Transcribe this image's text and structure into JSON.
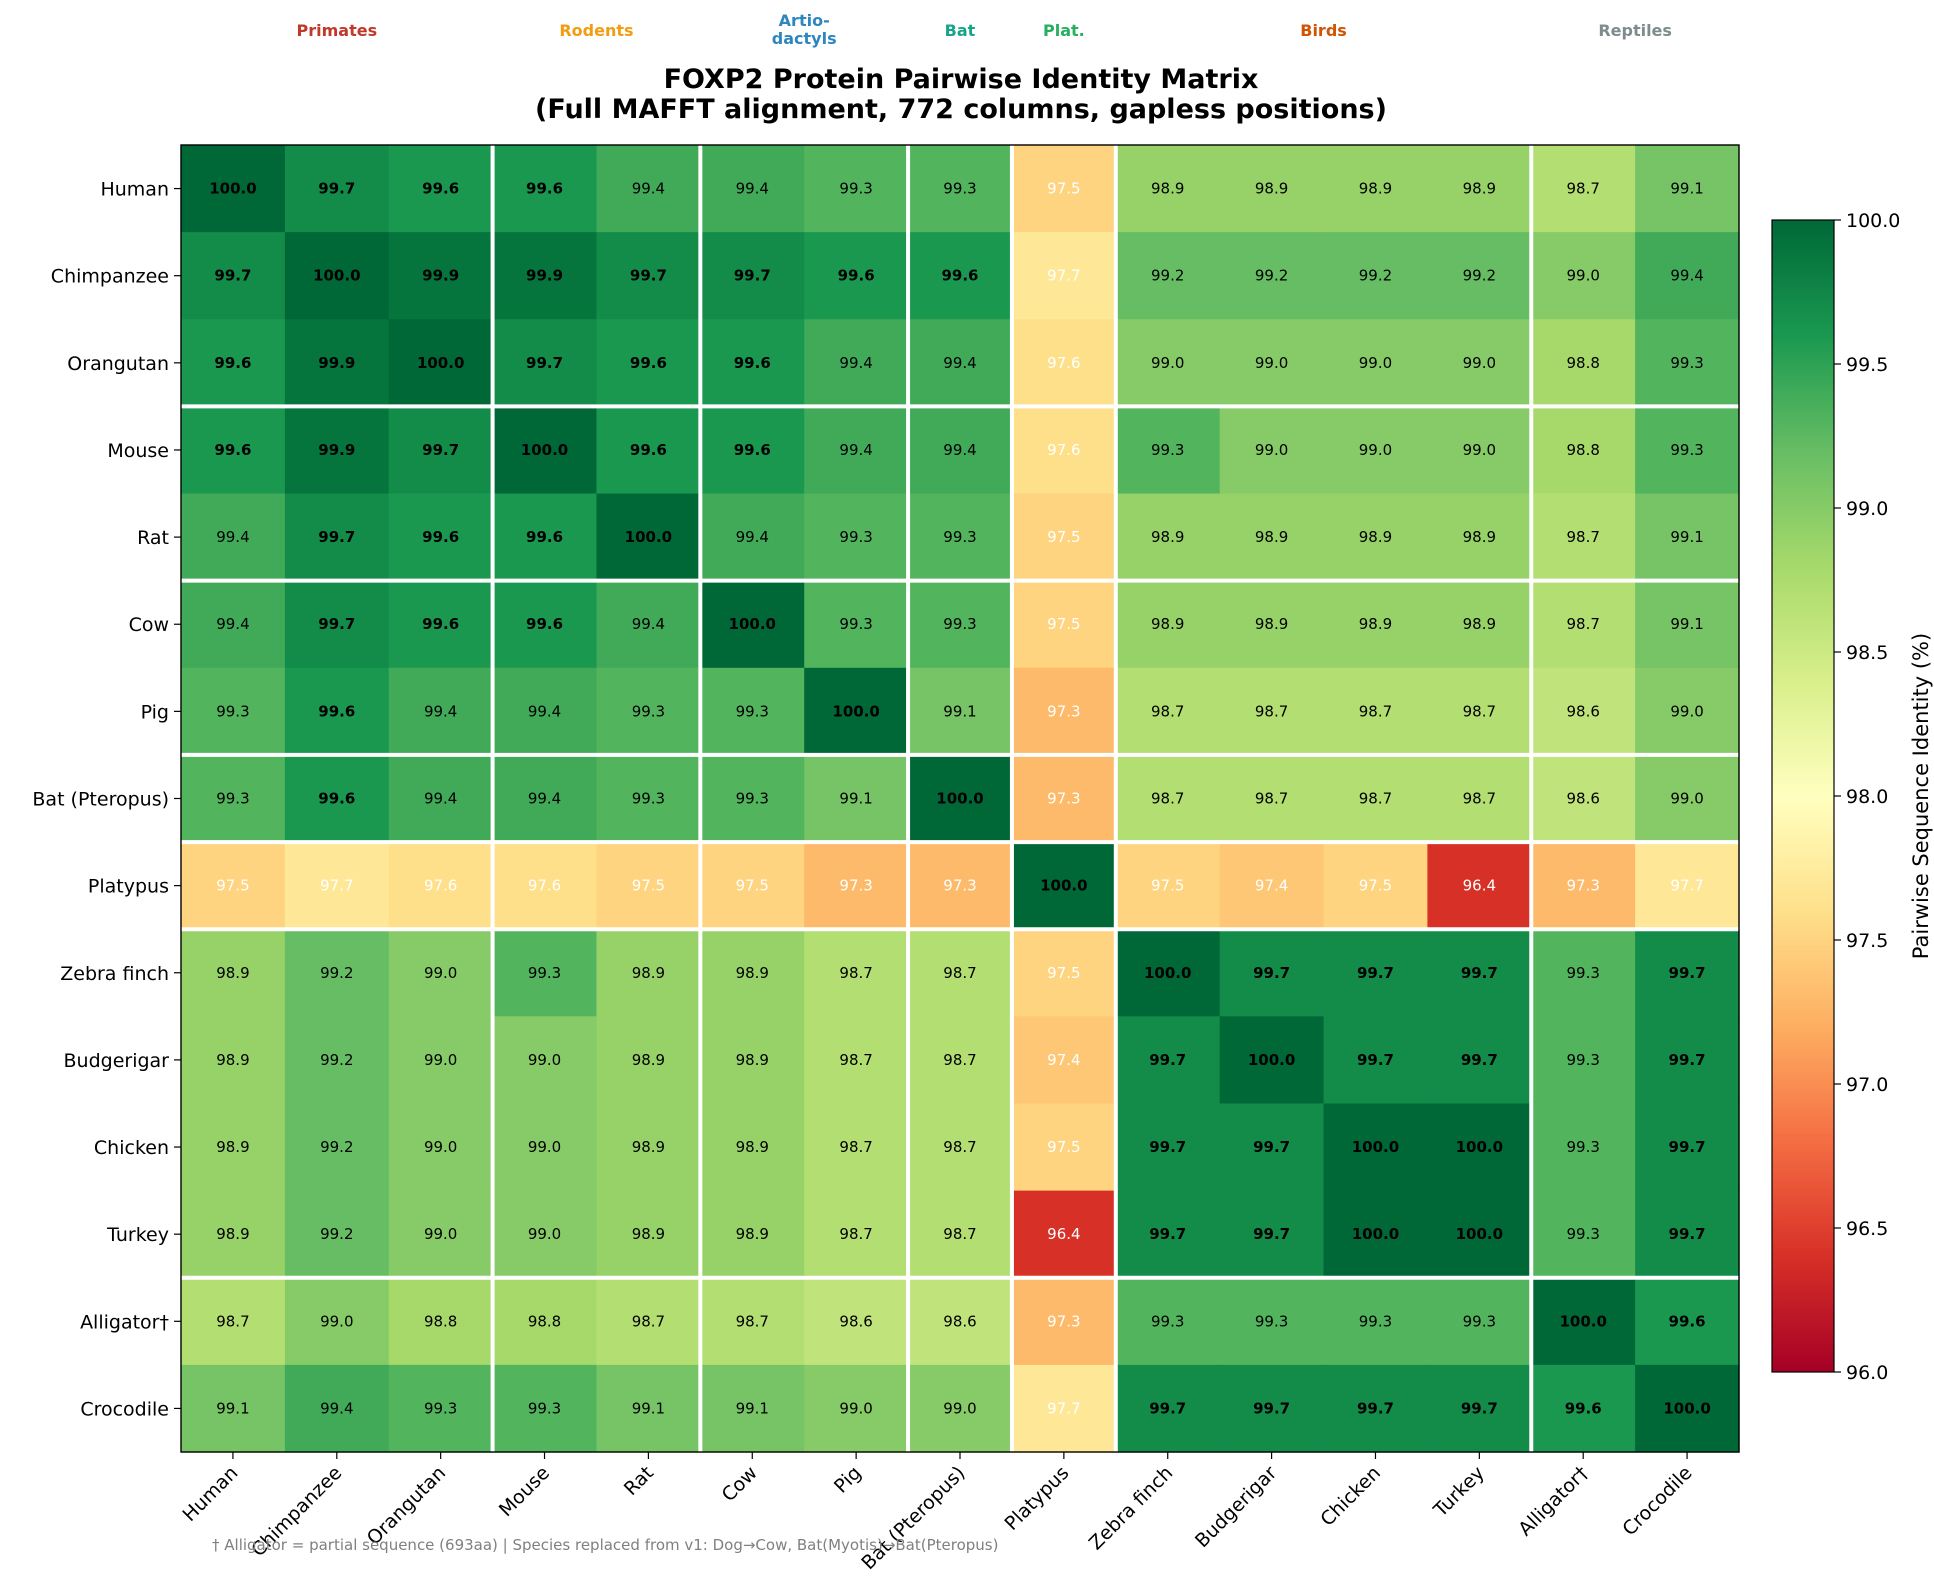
{
  "chart_data": {
    "type": "heatmap",
    "title": "FOXP2 Protein Pairwise Identity Matrix",
    "subtitle": "(Full MAFFT alignment, 772 columns, gapless positions)",
    "species": [
      "Human",
      "Chimpanzee",
      "Orangutan",
      "Mouse",
      "Rat",
      "Cow",
      "Pig",
      "Bat (Pteropus)",
      "Platypus",
      "Zebra finch",
      "Budgerigar",
      "Chicken",
      "Turkey",
      "Alligator†",
      "Crocodile"
    ],
    "values": [
      [
        100.0,
        99.7,
        99.6,
        99.6,
        99.4,
        99.4,
        99.3,
        99.3,
        97.5,
        98.9,
        98.9,
        98.9,
        98.9,
        98.7,
        99.1
      ],
      [
        99.7,
        100.0,
        99.9,
        99.9,
        99.7,
        99.7,
        99.6,
        99.6,
        97.7,
        99.2,
        99.2,
        99.2,
        99.2,
        99.0,
        99.4
      ],
      [
        99.6,
        99.9,
        100.0,
        99.7,
        99.6,
        99.6,
        99.4,
        99.4,
        97.6,
        99.0,
        99.0,
        99.0,
        99.0,
        98.8,
        99.3
      ],
      [
        99.6,
        99.9,
        99.7,
        100.0,
        99.6,
        99.6,
        99.4,
        99.4,
        97.6,
        99.3,
        99.0,
        99.0,
        99.0,
        98.8,
        99.3
      ],
      [
        99.4,
        99.7,
        99.6,
        99.6,
        100.0,
        99.4,
        99.3,
        99.3,
        97.5,
        98.9,
        98.9,
        98.9,
        98.9,
        98.7,
        99.1
      ],
      [
        99.4,
        99.7,
        99.6,
        99.6,
        99.4,
        100.0,
        99.3,
        99.3,
        97.5,
        98.9,
        98.9,
        98.9,
        98.9,
        98.7,
        99.1
      ],
      [
        99.3,
        99.6,
        99.4,
        99.4,
        99.3,
        99.3,
        100.0,
        99.1,
        97.3,
        98.7,
        98.7,
        98.7,
        98.7,
        98.6,
        99.0
      ],
      [
        99.3,
        99.6,
        99.4,
        99.4,
        99.3,
        99.3,
        99.1,
        100.0,
        97.3,
        98.7,
        98.7,
        98.7,
        98.7,
        98.6,
        99.0
      ],
      [
        97.5,
        97.7,
        97.6,
        97.6,
        97.5,
        97.5,
        97.3,
        97.3,
        100.0,
        97.5,
        97.4,
        97.5,
        96.4,
        97.3,
        97.7
      ],
      [
        98.9,
        99.2,
        99.0,
        99.3,
        98.9,
        98.9,
        98.7,
        98.7,
        97.5,
        100.0,
        99.7,
        99.7,
        99.7,
        99.3,
        99.7
      ],
      [
        98.9,
        99.2,
        99.0,
        99.0,
        98.9,
        98.9,
        98.7,
        98.7,
        97.4,
        99.7,
        100.0,
        99.7,
        99.7,
        99.3,
        99.7
      ],
      [
        98.9,
        99.2,
        99.0,
        99.0,
        98.9,
        98.9,
        98.7,
        98.7,
        97.5,
        99.7,
        99.7,
        100.0,
        100.0,
        99.3,
        99.7
      ],
      [
        98.9,
        99.2,
        99.0,
        99.0,
        98.9,
        98.9,
        98.7,
        98.7,
        96.4,
        99.7,
        99.7,
        100.0,
        100.0,
        99.3,
        99.7
      ],
      [
        98.7,
        99.0,
        98.8,
        98.8,
        98.7,
        98.7,
        98.6,
        98.6,
        97.3,
        99.3,
        99.3,
        99.3,
        99.3,
        100.0,
        99.6
      ],
      [
        99.1,
        99.4,
        99.3,
        99.3,
        99.1,
        99.1,
        99.0,
        99.0,
        97.7,
        99.7,
        99.7,
        99.7,
        99.7,
        99.6,
        100.0
      ]
    ],
    "groups": [
      {
        "label": "Primates",
        "start": 0,
        "end": 2,
        "color": "#c0392b"
      },
      {
        "label": "Rodents",
        "start": 3,
        "end": 4,
        "color": "#f39c12"
      },
      {
        "label": "Artio-\ndactyls",
        "start": 5,
        "end": 6,
        "color": "#2e86c1"
      },
      {
        "label": "Bat",
        "start": 7,
        "end": 7,
        "color": "#17a589"
      },
      {
        "label": "Plat.",
        "start": 8,
        "end": 8,
        "color": "#27ae60"
      },
      {
        "label": "Birds",
        "start": 9,
        "end": 12,
        "color": "#d35400"
      },
      {
        "label": "Reptiles",
        "start": 13,
        "end": 14,
        "color": "#7f8c8d"
      }
    ],
    "colorbar": {
      "label": "Pairwise Sequence Identity (%)",
      "min": 96.0,
      "max": 100.0,
      "ticks": [
        "96.0",
        "96.5",
        "97.0",
        "97.5",
        "98.0",
        "98.5",
        "99.0",
        "99.5",
        "100.0"
      ],
      "colormap": "RdYlGn"
    },
    "footnote": "† Alligator = partial sequence (693aa)  |  Species replaced from v1: Dog→Cow, Bat(Myotis)→Bat(Pteropus)"
  }
}
